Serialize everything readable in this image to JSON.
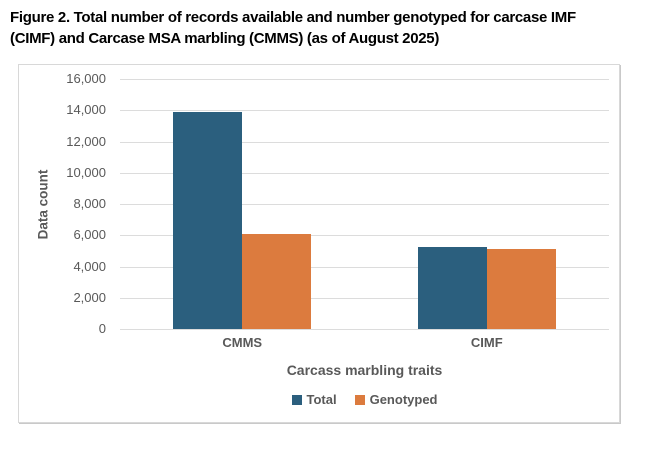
{
  "figure": {
    "title": "Figure 2. Total number of records available and number genotyped for carcase IMF (CIMF) and Carcase MSA marbling (CMMS) (as of August 2025)"
  },
  "chart_data": {
    "type": "bar",
    "categories": [
      "CMMS",
      "CIMF"
    ],
    "series": [
      {
        "name": "Total",
        "color": "#2B5F7E",
        "values": [
          13900,
          5240
        ]
      },
      {
        "name": "Genotyped",
        "color": "#DC7B3E",
        "values": [
          6050,
          5110
        ]
      }
    ],
    "xlabel": "Carcass marbling traits",
    "ylabel": "Data count",
    "ylim": [
      0,
      16000
    ],
    "ytick_step": 2000,
    "ytick_labels": [
      "0",
      "2,000",
      "4,000",
      "6,000",
      "8,000",
      "10,000",
      "12,000",
      "14,000",
      "16,000"
    ],
    "grid": true,
    "legend_position": "bottom"
  },
  "style": {
    "total_bar_color": "#2B5F7E",
    "genotyped_bar_color": "#DC7B3E",
    "axis_text_color": "#595959",
    "gridline_color": "#DCDCDC",
    "panel_border_color": "#D8D8D8",
    "title_color": "#000000",
    "background_color": "#FFFFFF"
  }
}
